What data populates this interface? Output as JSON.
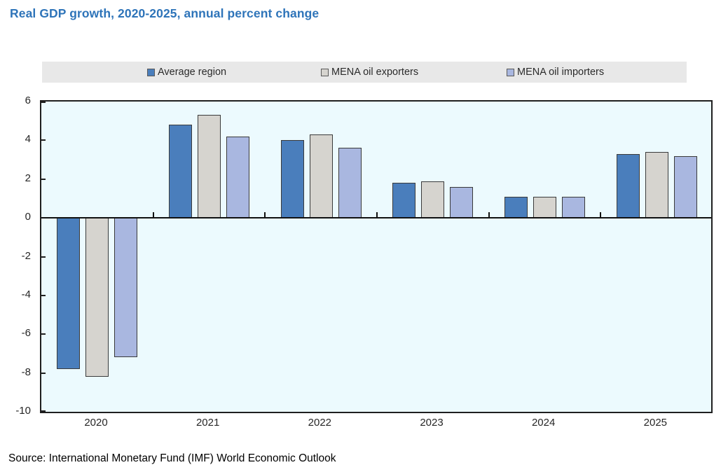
{
  "chart_data": {
    "type": "bar",
    "title": "Real GDP growth, 2020-2025, annual percent change",
    "title_color": "#2e74b9",
    "categories": [
      "2020",
      "2021",
      "2022",
      "2023",
      "2024",
      "2025"
    ],
    "series": [
      {
        "name": "Average region",
        "color": "#4a7ebc",
        "values": [
          -7.8,
          4.8,
          4.0,
          1.8,
          1.1,
          3.3
        ]
      },
      {
        "name": "MENA oil exporters",
        "color": "#d6d4cf",
        "values": [
          -8.2,
          5.3,
          4.3,
          1.9,
          1.1,
          3.4
        ]
      },
      {
        "name": "MENA oil importers",
        "color": "#a9b7e0",
        "values": [
          -7.2,
          4.2,
          3.6,
          1.6,
          1.1,
          3.2
        ]
      }
    ],
    "ylim": [
      -10,
      6
    ],
    "yticks": [
      6,
      4,
      2,
      0,
      -2,
      -4,
      -6,
      -8,
      -10
    ],
    "grid": false,
    "legend_position": "top",
    "plot_background": "#ecfafe",
    "legend_background": "#e8e8e8",
    "bar_border_color": "#3a3a3a",
    "axis_color": "#1f1f1f",
    "source": "Source: International Monetary Fund (IMF) World Economic Outlook"
  }
}
